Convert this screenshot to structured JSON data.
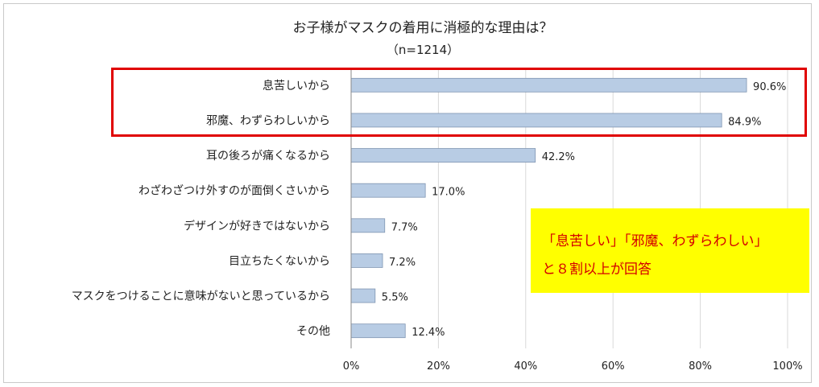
{
  "chart_data": {
    "type": "bar",
    "orientation": "horizontal",
    "title": "お子様がマスクの着用に消極的な理由は？",
    "subtitle": "（n=1214）",
    "categories": [
      "息苦しいから",
      "邪魔、わずらわしいから",
      "耳の後ろが痛くなるから",
      "わざわざつけ外すのが面倒くさいから",
      "デザインが好きではないから",
      "目立ちたくないから",
      "マスクをつけることに意味がないと思っているから",
      "その他"
    ],
    "values": [
      90.6,
      84.9,
      42.2,
      17.0,
      7.7,
      7.2,
      5.5,
      12.4
    ],
    "value_labels": [
      "90.6%",
      "84.9%",
      "42.2%",
      "17.0%",
      "7.7%",
      "7.2%",
      "5.5%",
      "12.4%"
    ],
    "xlim": [
      0,
      100
    ],
    "x_ticks": [
      0,
      20,
      40,
      60,
      80,
      100
    ],
    "x_tick_labels": [
      "0%",
      "20%",
      "40%",
      "60%",
      "80%",
      "100%"
    ],
    "grid": true,
    "bar_color": "#b8cce4",
    "highlighted_categories": [
      "息苦しいから",
      "邪魔、わずらわしいから"
    ],
    "highlight_color": "#e00000"
  },
  "callout": {
    "line1": "「息苦しい」「邪魔、わずらわしい」",
    "line2": "と８割以上が回答",
    "background": "#ffff00",
    "text_color": "#d40000"
  }
}
